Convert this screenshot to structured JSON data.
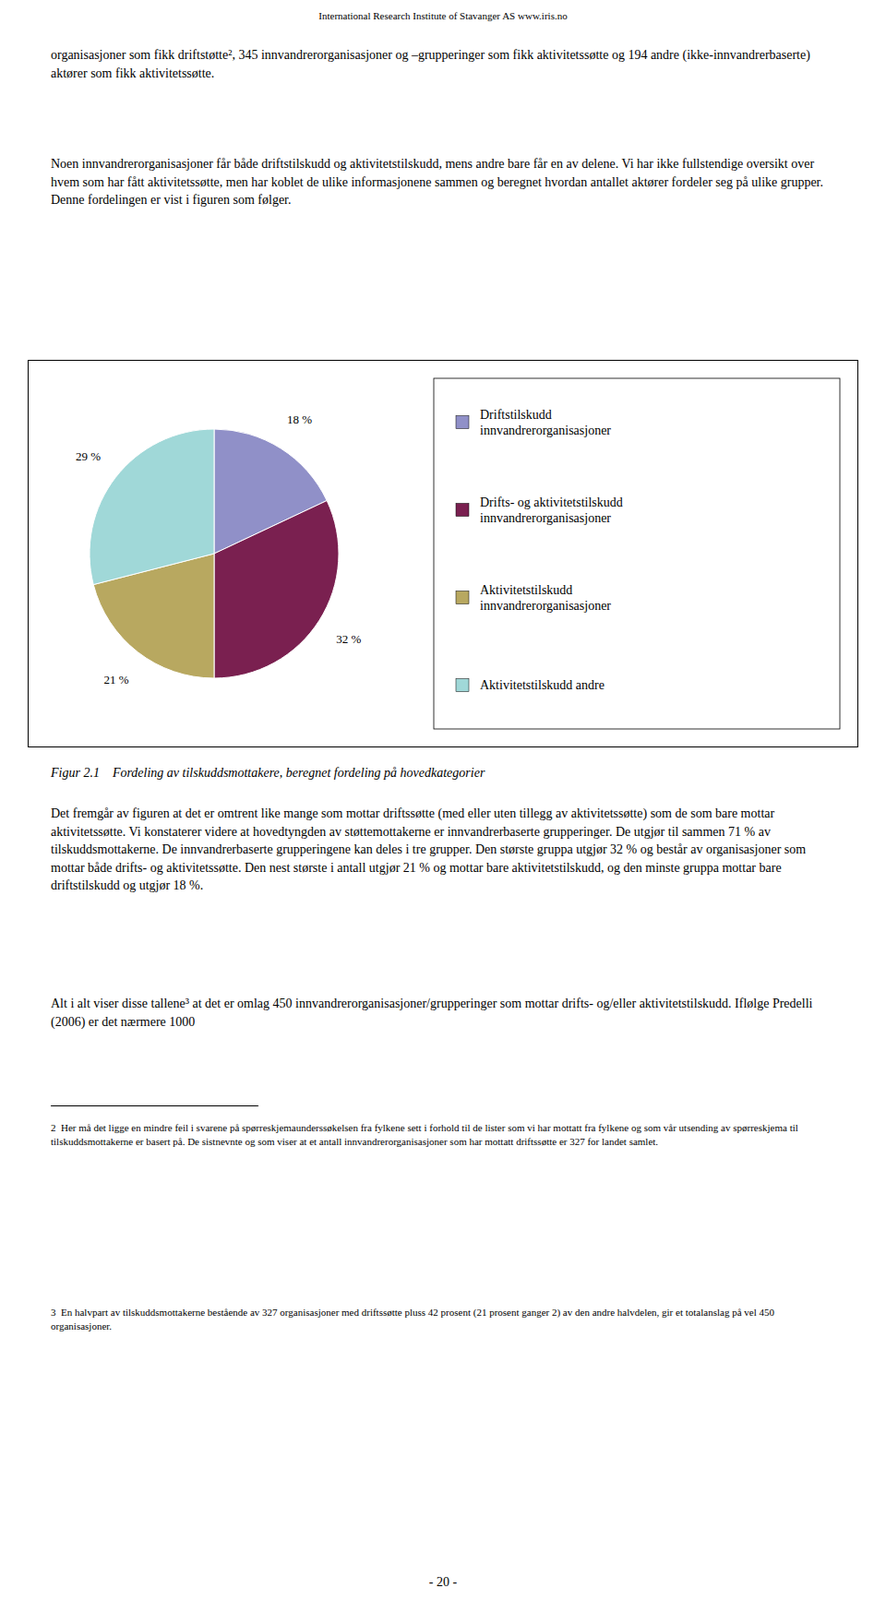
{
  "header": "International Research Institute of Stavanger AS    www.iris.no",
  "paragraphs": [
    "organisasjoner som fikk driftstøtte², 345 innvandrerorganisasjoner og –grupperinger som fikk aktivitetssøtte og 194 andre (ikke-innvandrerbaserte) aktører som fikk aktivitetssøtte.",
    "Noen innvandrerorganisasjoner får både driftstilskudd og aktivitetstilskudd, mens andre bare får en av delene. Vi har ikke fullstendige oversikt over hvem som har fått aktivitetssøtte, men har koblet de ulike informasjonene sammen og beregnet hvordan antallet aktører fordeler seg på ulike grupper. Denne fordelingen er vist i figuren som følger.",
    "Det fremgår av figuren at det er omtrent like mange som mottar driftssøtte (med eller uten tillegg av aktivitetssøtte) som de som bare mottar aktivitetssøtte. Vi konstaterer videre at hovedtyngden av støttemottakerne er innvandrerbaserte grupperinger. De utgjør til sammen 71 % av tilskuddsmottakerne. De innvandrerbaserte grupperingene kan deles i tre grupper. Den største gruppa utgjør 32 % og består av organisasjoner som mottar både drifts- og aktivitetssøtte. Den nest største i antall utgjør 21 % og mottar bare aktivitetstilskudd, og den minste gruppa mottar bare driftstilskudd og utgjør 18 %.",
    "Alt i alt viser disse tallene³ at det er omlag 450 innvandrerorganisasjoner/grupperinger som mottar drifts- og/eller aktivitetstilskudd. Iflølge Predelli (2006) er det nærmere 1000"
  ],
  "footnotes": [
    "2  Her må det ligge en mindre feil i svarene på spørreskjemaunderssøkelsen fra fylkene sett i forhold til de lister som vi har mottatt fra fylkene og som vår utsending av spørreskjema til tilskuddsmottakerne er basert på. De sistnevnte og som viser at et antall innvandrerorganisasjoner som har mottatt driftssøtte er 327 for landet samlet.",
    "3  En halvpart av tilskuddsmottakerne bestående av 327 organisasjoner med driftssøtte pluss 42 prosent (21 prosent ganger 2) av den andre halvdelen, gir et totalanslag på vel 450 organisasjoner."
  ],
  "page_number": "- 20 -",
  "chart_data": {
    "type": "pie",
    "title": "Figur 2.1    Fordeling av tilskuddsmottakere, beregnet fordeling på hovedkategorier",
    "categories": [
      "Driftstilskudd\ninnvandrerorganisasjoner",
      "Drifts- og aktivitetstilskudd\ninnvandrerorganisasjoner",
      "Aktivitetstilskudd\ninnvandrerorganisasjoner",
      "Aktivitetstilskudd andre"
    ],
    "values": [
      18,
      32,
      21,
      29
    ],
    "value_labels": [
      "18 %",
      "32 %",
      "21 %",
      "29 %"
    ],
    "colors": [
      "#9090c8",
      "#7a2050",
      "#b8a860",
      "#a0d8d8"
    ],
    "data_labels": true,
    "legend": "right"
  }
}
